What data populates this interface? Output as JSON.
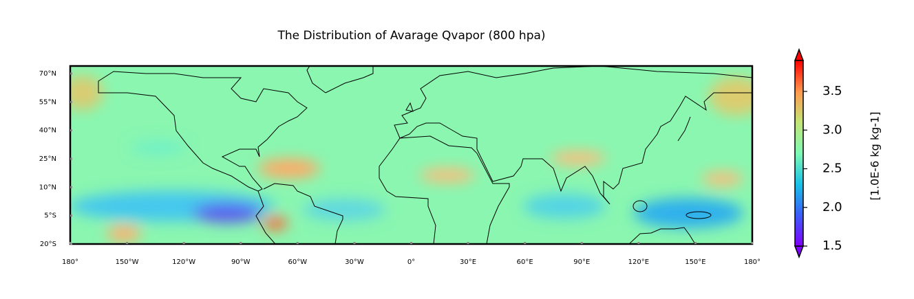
{
  "title": "The Distribution of Avarage Qvapor (800 hpa)",
  "map": {
    "lonlim": [
      -180,
      180
    ],
    "latlim": [
      -20,
      74
    ],
    "xticks": [
      {
        "value": -180,
        "label": "180°"
      },
      {
        "value": -150,
        "label": "150°W"
      },
      {
        "value": -120,
        "label": "120°W"
      },
      {
        "value": -90,
        "label": "90°W"
      },
      {
        "value": -60,
        "label": "60°W"
      },
      {
        "value": -30,
        "label": "30°W"
      },
      {
        "value": 0,
        "label": "0°"
      },
      {
        "value": 30,
        "label": "30°E"
      },
      {
        "value": 60,
        "label": "60°E"
      },
      {
        "value": 90,
        "label": "90°E"
      },
      {
        "value": 120,
        "label": "120°E"
      },
      {
        "value": 150,
        "label": "150°E"
      },
      {
        "value": 180,
        "label": "180°"
      }
    ],
    "yticks": [
      {
        "value": 70,
        "label": "70°N"
      },
      {
        "value": 55,
        "label": "55°N"
      },
      {
        "value": 40,
        "label": "40°N"
      },
      {
        "value": 25,
        "label": "25°N"
      },
      {
        "value": 10,
        "label": "10°N"
      },
      {
        "value": -5,
        "label": "5°S"
      },
      {
        "value": -20,
        "label": "20°S"
      }
    ]
  },
  "colorbar": {
    "label": "[1.0E-6 kg kg-1]",
    "range": [
      1.5,
      3.9
    ],
    "ticks": [
      1.5,
      {
        "value": 2,
        "label": "2.0"
      },
      2.5,
      {
        "value": 3,
        "label": "3.0"
      },
      3.5
    ]
  }
}
